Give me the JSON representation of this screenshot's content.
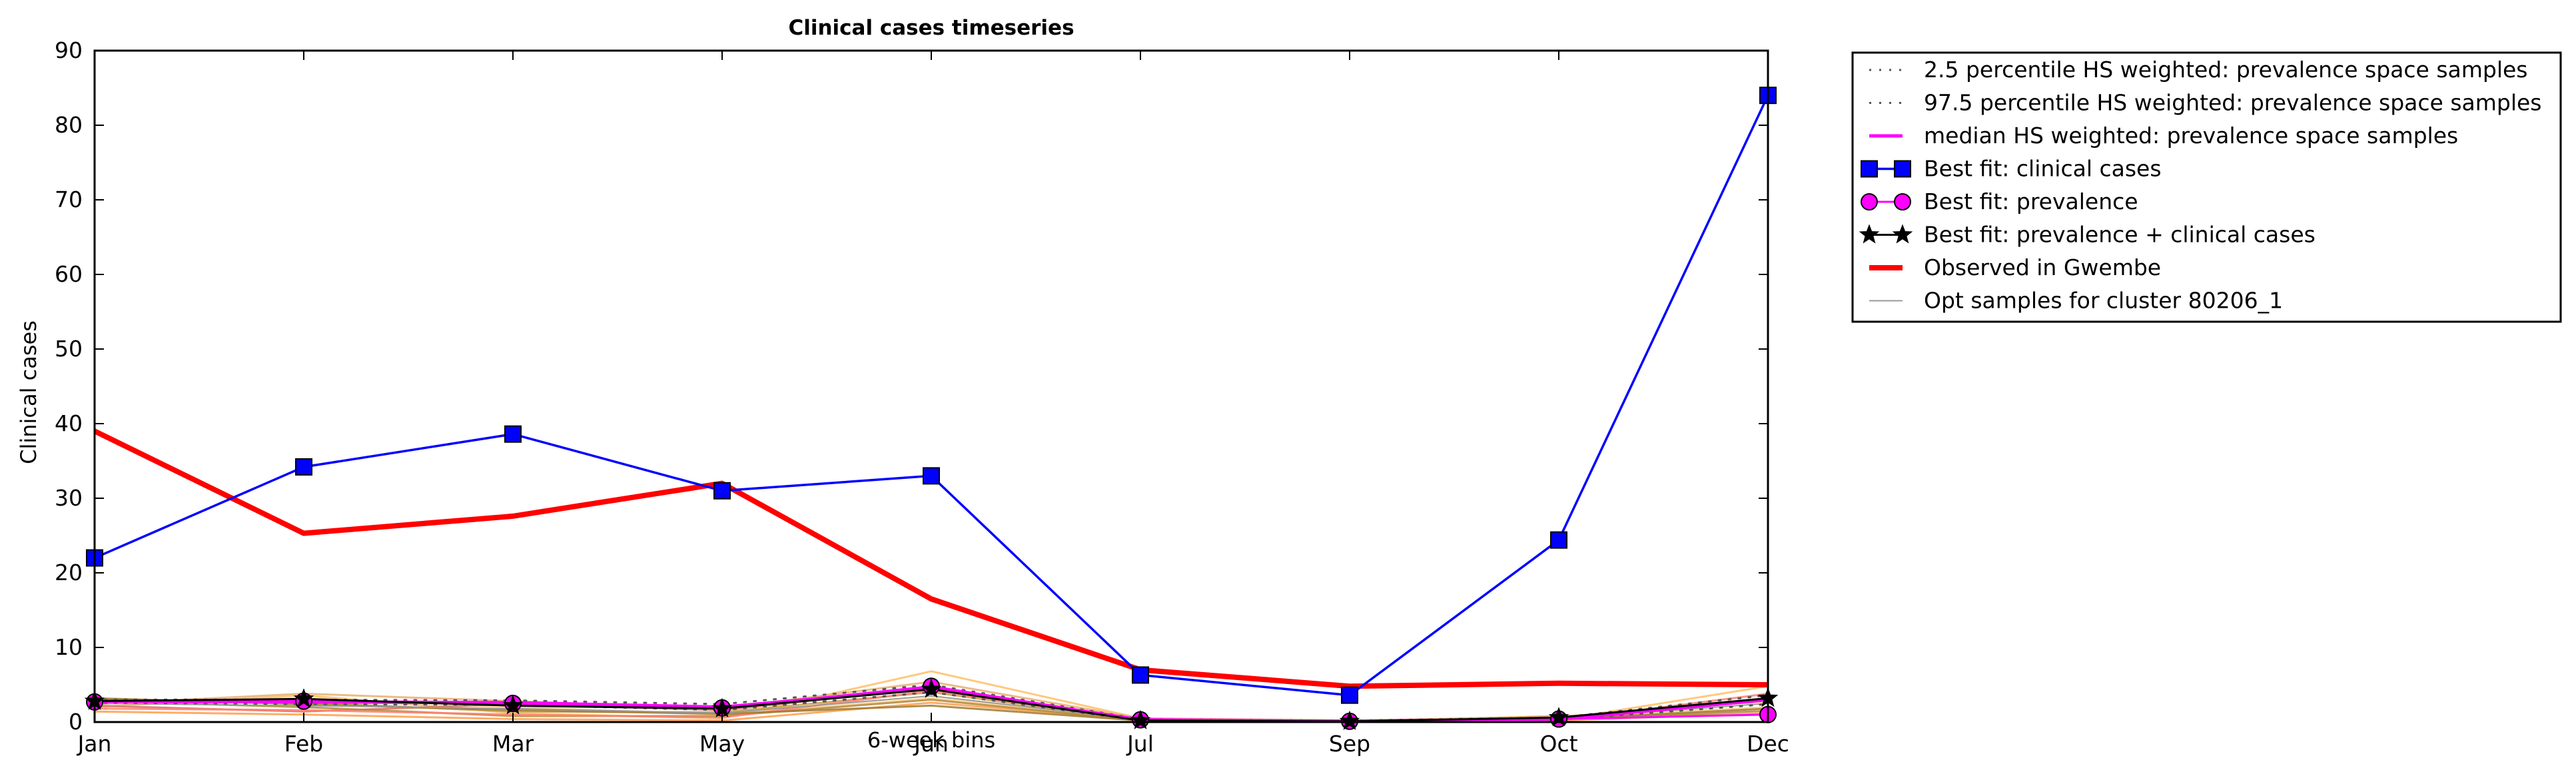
{
  "chart_data": {
    "type": "line",
    "title": "Clinical cases timeseries",
    "xlabel": "6-week bins",
    "ylabel": "Clinical cases",
    "categories": [
      "Jan",
      "Feb",
      "Mar",
      "May",
      "Jun",
      "Jul",
      "Sep",
      "Oct",
      "Dec"
    ],
    "ylim": [
      0,
      90
    ],
    "yticks": [
      0,
      10,
      20,
      30,
      40,
      50,
      60,
      70,
      80,
      90
    ],
    "grid": false,
    "legend_position": "outside-right-top",
    "series": [
      {
        "name": "2.5 percentile HS weighted: prevalence space samples",
        "color": "#555555",
        "style": "dotted",
        "values": [
          2.6,
          2.4,
          2.3,
          1.6,
          4.0,
          0.2,
          0.1,
          0.3,
          2.4
        ]
      },
      {
        "name": "97.5 percentile HS weighted: prevalence space samples",
        "color": "#555555",
        "style": "dotted",
        "values": [
          3.0,
          3.0,
          2.9,
          2.4,
          5.0,
          0.4,
          0.2,
          0.6,
          3.6
        ]
      },
      {
        "name": "median HS weighted: prevalence space samples",
        "color": "#ff00ff",
        "style": "solid",
        "values": [
          2.8,
          2.7,
          2.6,
          2.0,
          4.5,
          0.3,
          0.1,
          0.4,
          3.0
        ]
      },
      {
        "name": "Best fit: clinical cases",
        "color": "#0000ff",
        "marker": "square",
        "values": [
          22.0,
          34.2,
          38.6,
          31.0,
          33.0,
          6.3,
          3.6,
          24.4,
          84.0
        ]
      },
      {
        "name": "Best fit: prevalence",
        "color": "#ff00ff",
        "marker": "circle",
        "values": [
          2.7,
          2.8,
          2.5,
          1.9,
          4.8,
          0.3,
          0.1,
          0.4,
          1.0
        ]
      },
      {
        "name": "Best fit: prevalence + clinical cases",
        "color": "#000000",
        "marker": "star",
        "values": [
          2.8,
          3.1,
          2.2,
          1.8,
          4.4,
          0.2,
          0.1,
          0.6,
          3.2
        ]
      },
      {
        "name": "Observed in Gwembe",
        "color": "#ff0000",
        "style": "thick",
        "values": [
          39.0,
          25.3,
          27.6,
          32.0,
          16.5,
          7.0,
          4.8,
          5.2,
          5.0
        ]
      },
      {
        "name": "Opt samples for cluster 80206_1",
        "color": "#999999",
        "style": "thin",
        "values": [
          2.5,
          2.2,
          1.8,
          1.2,
          3.5,
          0.3,
          0.1,
          0.5,
          2.5
        ]
      }
    ],
    "opt_sample_colors": [
      "#ffbf66",
      "#ffd090",
      "#ff9e4a",
      "#c8a040",
      "#d87060",
      "#b08838",
      "#e8b070",
      "#ff8070",
      "#a07a30"
    ],
    "opt_samples": [
      [
        2.0,
        3.6,
        1.2,
        0.5,
        6.8,
        0.5,
        0.2,
        0.3,
        4.8
      ],
      [
        2.6,
        3.2,
        2.0,
        1.0,
        3.2,
        0.4,
        0.1,
        0.6,
        2.0
      ],
      [
        1.4,
        1.0,
        0.4,
        0.2,
        2.6,
        0.3,
        0.0,
        0.2,
        1.2
      ],
      [
        3.0,
        2.6,
        1.4,
        1.3,
        4.0,
        0.2,
        0.1,
        0.8,
        1.0
      ],
      [
        2.2,
        1.4,
        2.4,
        1.6,
        4.6,
        0.3,
        0.2,
        0.5,
        3.2
      ],
      [
        2.8,
        2.0,
        0.8,
        0.8,
        3.0,
        0.2,
        0.1,
        0.4,
        1.5
      ],
      [
        2.4,
        3.8,
        2.8,
        1.8,
        5.4,
        0.5,
        0.2,
        0.7,
        2.8
      ],
      [
        1.8,
        1.6,
        1.0,
        0.6,
        4.2,
        0.3,
        0.1,
        0.2,
        3.8
      ],
      [
        3.2,
        2.4,
        1.6,
        1.1,
        2.2,
        0.2,
        0.0,
        0.4,
        1.8
      ]
    ]
  }
}
